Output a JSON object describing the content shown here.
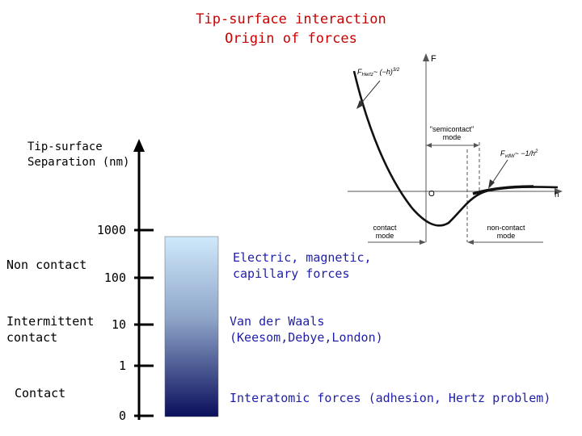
{
  "title": {
    "line1": "Tip-surface interaction",
    "line2": "Origin of forces"
  },
  "axis_label": {
    "line1": "Tip-surface",
    "line2": "Separation (nm)"
  },
  "ticks": [
    "1000",
    "100",
    "10",
    "1",
    "0"
  ],
  "regimes": {
    "non_contact": "Non contact",
    "intermittent_line1": "Intermittent",
    "intermittent_line2": "contact",
    "contact": "Contact"
  },
  "forces": {
    "electric_line1": "Electric, magnetic,",
    "electric_line2": "capillary forces",
    "vdw_line1": "Van der Waals",
    "vdw_line2": "(Keesom,Debye,London)",
    "interatomic": "Interatomic forces (adhesion, Hertz problem)"
  },
  "graph": {
    "f_axis": "F",
    "h_axis": "h",
    "origin": "O",
    "hertz_label": "F",
    "hertz_sub": "Hertz",
    "hertz_rest": "~ (−h)",
    "hertz_exp": "3/2",
    "vdw_label": "F",
    "vdw_sub": "vdW",
    "vdw_rest": "~ −1/h",
    "vdw_exp": "2",
    "semicontact_line1": "\"semicontact\"",
    "semicontact_line2": "mode",
    "contact_line1": "contact",
    "contact_line2": "mode",
    "noncontact_line1": "non-contact",
    "noncontact_line2": "mode"
  },
  "colors": {
    "title": "#cc0000",
    "force_text": "#1f1fa8",
    "bar_top": "#cfe9fb",
    "bar_bottom": "#0a0f5c"
  }
}
